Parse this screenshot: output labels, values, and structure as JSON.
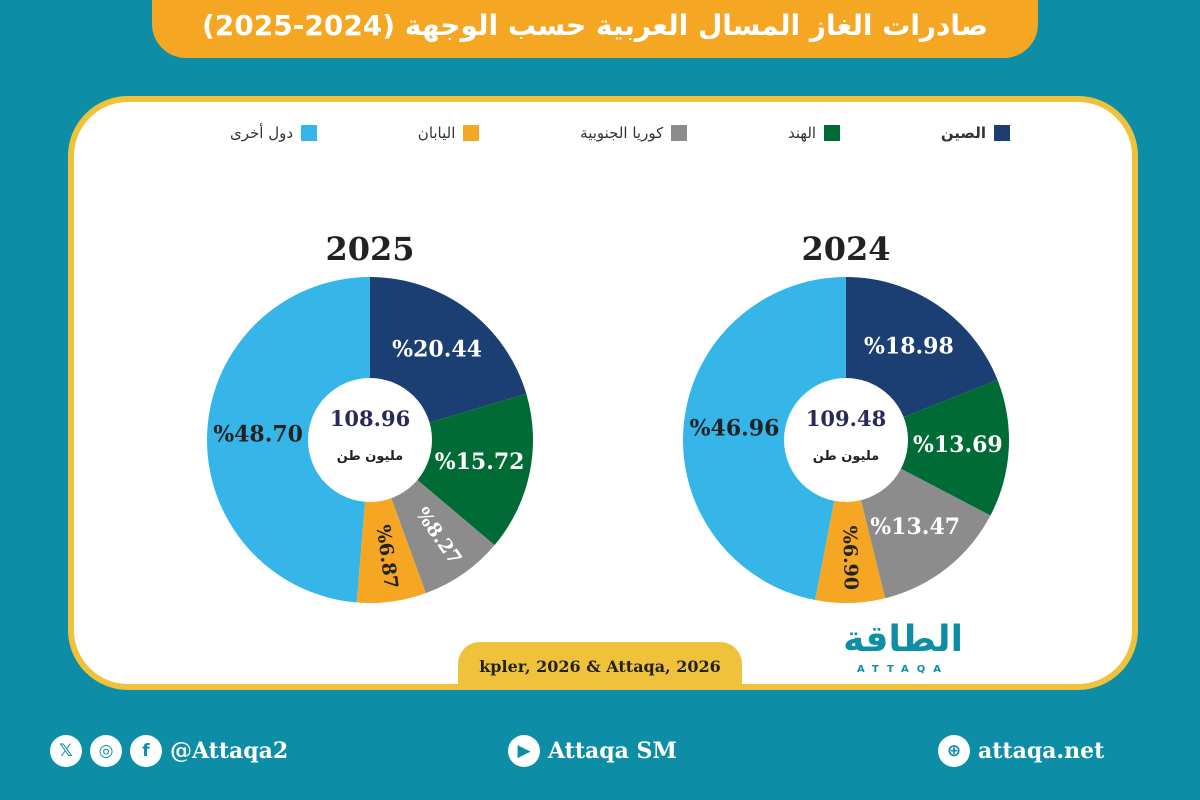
{
  "title": "صادرات الغاز المسال العربية حسب الوجهة (2024-2025)",
  "chart_data": [
    {
      "type": "pie",
      "title": "2024",
      "center_value": "109.48",
      "center_unit": "مليون طن",
      "categories": [
        "الصين",
        "الهند",
        "كوريا الجنوبية",
        "اليابان",
        "دول أخرى"
      ],
      "values": [
        18.98,
        13.69,
        13.47,
        6.9,
        46.96
      ],
      "labels": [
        "%18.98",
        "%13.69",
        "%13.47",
        "%6.90",
        "%46.96"
      ]
    },
    {
      "type": "pie",
      "title": "2025",
      "center_value": "108.96",
      "center_unit": "مليون طن",
      "categories": [
        "الصين",
        "الهند",
        "كوريا الجنوبية",
        "اليابان",
        "دول أخرى"
      ],
      "values": [
        20.44,
        15.72,
        8.27,
        6.87,
        48.7
      ],
      "labels": [
        "%20.44",
        "%15.72",
        "%8.27",
        "%6.87",
        "%48.70"
      ]
    }
  ],
  "legend": [
    {
      "label": "الصين",
      "color": "#1b3f73"
    },
    {
      "label": "الهند",
      "color": "#006b35"
    },
    {
      "label": "كوريا الجنوبية",
      "color": "#8c8c8c"
    },
    {
      "label": "اليابان",
      "color": "#f5a623"
    },
    {
      "label": "دول أخرى",
      "color": "#35b5e8"
    }
  ],
  "source": "kpler, 2026 & Attaqa, 2026",
  "logo": {
    "text": "الطاقة",
    "sub": "ATTAQA"
  },
  "footer": {
    "social": "@Attaqa2",
    "youtube": "Attaqa SM",
    "web": "attaqa.net"
  }
}
